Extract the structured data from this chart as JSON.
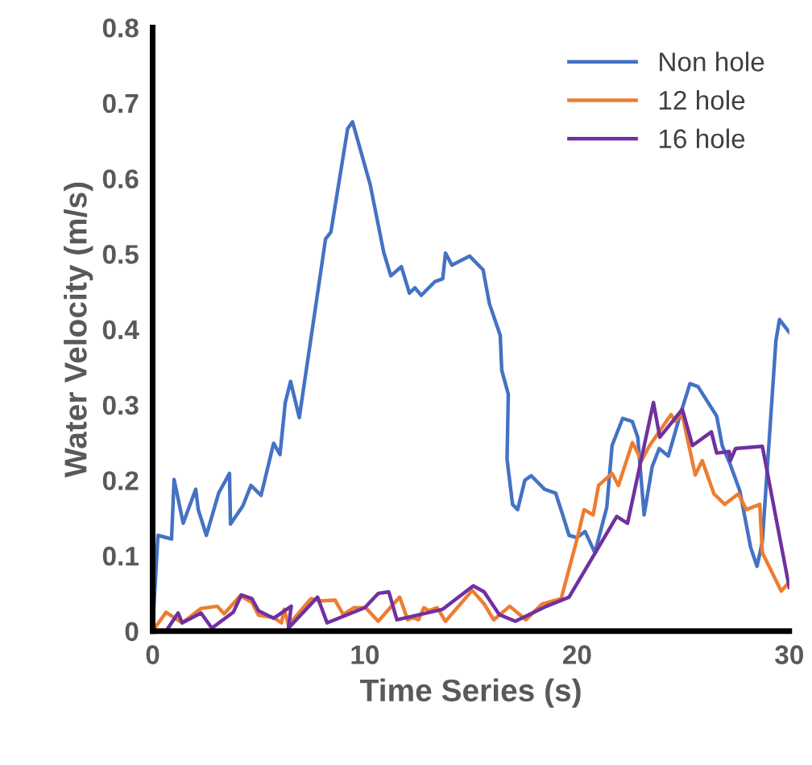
{
  "chart_data": {
    "type": "line",
    "xlabel": "Time Series (s)",
    "ylabel": "Water Velocity (m/s)",
    "xlim": [
      0,
      30
    ],
    "ylim": [
      0,
      0.8
    ],
    "xticks": [
      0,
      10,
      20,
      30
    ],
    "yticks": [
      0,
      0.1,
      0.2,
      0.3,
      0.4,
      0.5,
      0.6,
      0.7,
      0.8
    ],
    "grid": false,
    "legend": "top right",
    "marker": "none",
    "line_style": "solid",
    "series": [
      {
        "name": "Non hole",
        "color": "#4472c4",
        "x": [
          0,
          0.25,
          0.89,
          1.01,
          1.44,
          2.03,
          2.15,
          2.53,
          3.11,
          3.62,
          3.67,
          4.25,
          4.63,
          5.11,
          5.7,
          6.0,
          6.25,
          6.5,
          6.91,
          8.15,
          8.4,
          9.19,
          9.42,
          10.25,
          10.89,
          11.22,
          11.72,
          12.1,
          12.36,
          12.66,
          13.29,
          13.67,
          13.8,
          14.1,
          14.94,
          15.57,
          15.87,
          16.38,
          16.45,
          16.76,
          16.7,
          16.96,
          17.2,
          17.54,
          17.84,
          18.47,
          18.99,
          19.37,
          19.62,
          20.0,
          20.38,
          20.84,
          21.4,
          21.65,
          22.15,
          22.6,
          22.86,
          23.16,
          23.54,
          23.87,
          24.3,
          24.81,
          25.32,
          25.7,
          26.58,
          26.84,
          27.22,
          27.67,
          28.18,
          28.48,
          28.73,
          29.37,
          29.54,
          30
        ],
        "values": [
          0.004,
          0.127,
          0.122,
          0.201,
          0.143,
          0.188,
          0.161,
          0.127,
          0.183,
          0.209,
          0.142,
          0.166,
          0.193,
          0.18,
          0.249,
          0.234,
          0.303,
          0.331,
          0.283,
          0.52,
          0.529,
          0.666,
          0.675,
          0.592,
          0.502,
          0.471,
          0.483,
          0.448,
          0.455,
          0.445,
          0.463,
          0.467,
          0.501,
          0.485,
          0.497,
          0.479,
          0.434,
          0.392,
          0.346,
          0.314,
          0.228,
          0.168,
          0.161,
          0.2,
          0.206,
          0.188,
          0.183,
          0.15,
          0.127,
          0.124,
          0.132,
          0.104,
          0.164,
          0.246,
          0.282,
          0.278,
          0.257,
          0.154,
          0.218,
          0.242,
          0.232,
          0.282,
          0.328,
          0.324,
          0.285,
          0.246,
          0.221,
          0.186,
          0.111,
          0.086,
          0.118,
          0.385,
          0.413,
          0.396
        ]
      },
      {
        "name": "12 hole",
        "color": "#ed7d31",
        "x": [
          0,
          0.63,
          1.01,
          1.39,
          2.28,
          3.04,
          3.37,
          4.13,
          4.68,
          4.99,
          5.7,
          6.07,
          6.2,
          6.4,
          7.46,
          7.97,
          8.6,
          8.98,
          9.49,
          10.04,
          10.63,
          11.13,
          11.64,
          12.02,
          12.27,
          12.53,
          12.78,
          13.03,
          13.41,
          13.8,
          15.06,
          15.62,
          16.07,
          16.83,
          17.59,
          18.35,
          19.25,
          20.0,
          20.33,
          20.76,
          21.01,
          21.65,
          21.95,
          22.61,
          23.04,
          23.42,
          24.43,
          24.63,
          24.94,
          25.57,
          25.9,
          26.45,
          26.96,
          27.6,
          27.98,
          28.61,
          28.73,
          29.62,
          30
        ],
        "values": [
          0,
          0.025,
          0.018,
          0.011,
          0.03,
          0.033,
          0.023,
          0.047,
          0.038,
          0.021,
          0.018,
          0.011,
          0.029,
          0.008,
          0.043,
          0.04,
          0.041,
          0.022,
          0.031,
          0.031,
          0.013,
          0.029,
          0.045,
          0.015,
          0.018,
          0.015,
          0.031,
          0.027,
          0.031,
          0.013,
          0.054,
          0.036,
          0.015,
          0.033,
          0.015,
          0.036,
          0.043,
          0.122,
          0.161,
          0.154,
          0.193,
          0.209,
          0.193,
          0.25,
          0.226,
          0.246,
          0.287,
          0.278,
          0.289,
          0.207,
          0.226,
          0.182,
          0.168,
          0.182,
          0.161,
          0.168,
          0.104,
          0.053,
          0.065
        ]
      },
      {
        "name": "16 hole",
        "color": "#7030a0",
        "x": [
          0.63,
          1.2,
          1.39,
          2.28,
          2.79,
          3.8,
          4.18,
          4.68,
          4.99,
          5.7,
          6.53,
          6.4,
          7.77,
          8.22,
          9.99,
          10.63,
          11.13,
          11.51,
          13.67,
          15.11,
          15.62,
          16.33,
          17.09,
          18.56,
          19.62,
          21.87,
          22.38,
          23.6,
          23.9,
          24.96,
          25.44,
          26.33,
          26.58,
          27.17,
          27.22,
          27.47,
          28.73,
          30
        ],
        "values": [
          0,
          0.024,
          0.011,
          0.024,
          0.004,
          0.025,
          0.048,
          0.043,
          0.027,
          0.017,
          0.033,
          0.004,
          0.045,
          0.011,
          0.031,
          0.05,
          0.052,
          0.015,
          0.029,
          0.06,
          0.052,
          0.022,
          0.013,
          0.033,
          0.045,
          0.152,
          0.143,
          0.303,
          0.257,
          0.294,
          0.246,
          0.264,
          0.236,
          0.238,
          0.226,
          0.242,
          0.245,
          0.058
        ]
      }
    ]
  }
}
